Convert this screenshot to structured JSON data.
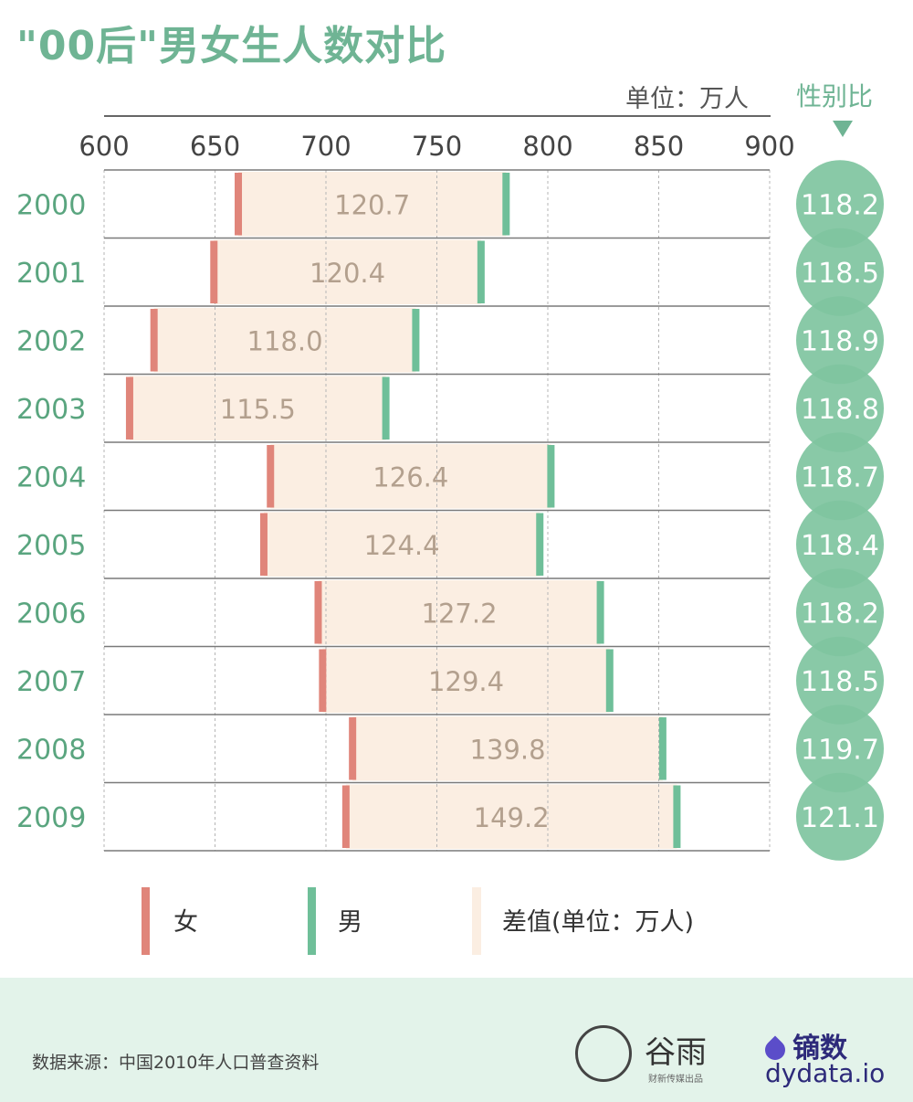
{
  "title": "\"00后\"男女生人数对比",
  "unit_label": "单位：万人",
  "ratio_header": "性别比",
  "source": "数据来源：中国2010年人口普查资料",
  "logo_left": {
    "name": "谷雨",
    "subtitle": "财新传媒出品"
  },
  "logo_right": {
    "name": "镝数",
    "url": "dydata.io"
  },
  "colors": {
    "female": "#e0857a",
    "male": "#6fbf99",
    "diff": "#fbeee2",
    "ratio_circle": "#7fc49f",
    "year_text": "#5aa57f",
    "value_text": "#b3a08e"
  },
  "chart_data": {
    "type": "bar",
    "title": "\"00后\"男女生人数对比",
    "unit": "单位：万人",
    "xlim": [
      600,
      900
    ],
    "x_ticks": [
      600,
      650,
      700,
      750,
      800,
      850,
      900
    ],
    "categories": [
      "2000",
      "2001",
      "2002",
      "2003",
      "2004",
      "2005",
      "2006",
      "2007",
      "2008",
      "2009"
    ],
    "series": [
      {
        "name": "女",
        "values": [
          660.5,
          649.5,
          622.5,
          611.5,
          675.0,
          672.0,
          696.5,
          698.5,
          712.0,
          709.0
        ]
      },
      {
        "name": "男",
        "values": [
          781.2,
          769.9,
          740.5,
          727.0,
          801.4,
          796.4,
          823.7,
          827.9,
          851.8,
          858.2
        ]
      }
    ],
    "diff_label": "差值(单位：万人)",
    "diff_values": [
      "120.7",
      "120.4",
      "118.0",
      "115.5",
      "126.4",
      "124.4",
      "127.2",
      "129.4",
      "139.8",
      "149.2"
    ],
    "ratio_header": "性别比",
    "ratio_values": [
      "118.2",
      "118.5",
      "118.9",
      "118.8",
      "118.7",
      "118.4",
      "118.2",
      "118.5",
      "119.7",
      "121.1"
    ],
    "legend": [
      {
        "name": "女"
      },
      {
        "name": "男"
      },
      {
        "name": "差值(单位：万人)"
      }
    ],
    "grid": true,
    "legend_position": "bottom"
  }
}
